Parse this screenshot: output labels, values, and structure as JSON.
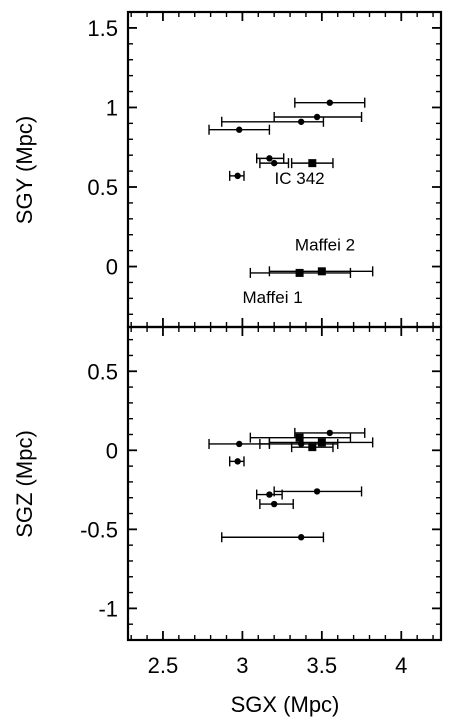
{
  "chart_data": {
    "type": "scatter",
    "xlabel": "SGX (Mpc)",
    "x_ticks": [
      "2.5",
      "3",
      "3.5",
      "4"
    ],
    "x_tick_values": [
      2.5,
      3,
      3.5,
      4
    ],
    "xlim": [
      2.28,
      4.25
    ],
    "panels": [
      {
        "id": "sgy",
        "ylabel": "SGY (Mpc)",
        "ylim": [
          -0.38,
          1.6
        ],
        "y_ticks": [
          "1.5",
          "1",
          "0.5",
          "0"
        ],
        "y_tick_values": [
          1.5,
          1,
          0.5,
          0
        ],
        "points": [
          {
            "x": 3.55,
            "y": 1.03,
            "xmin": 3.33,
            "xmax": 3.77,
            "marker": "circle"
          },
          {
            "x": 3.47,
            "y": 0.94,
            "xmin": 3.2,
            "xmax": 3.75,
            "marker": "circle"
          },
          {
            "x": 3.37,
            "y": 0.91,
            "xmin": 2.87,
            "xmax": 3.51,
            "marker": "circle"
          },
          {
            "x": 2.98,
            "y": 0.86,
            "xmin": 2.79,
            "xmax": 3.17,
            "marker": "circle"
          },
          {
            "x": 3.17,
            "y": 0.68,
            "xmin": 3.09,
            "xmax": 3.26,
            "marker": "circle"
          },
          {
            "x": 3.2,
            "y": 0.65,
            "xmin": 3.11,
            "xmax": 3.29,
            "marker": "circle"
          },
          {
            "x": 3.44,
            "y": 0.65,
            "xmin": 3.31,
            "xmax": 3.57,
            "marker": "square"
          },
          {
            "x": 2.97,
            "y": 0.57,
            "xmin": 2.92,
            "xmax": 3.01,
            "marker": "circle"
          },
          {
            "x": 3.5,
            "y": -0.03,
            "xmin": 3.17,
            "xmax": 3.82,
            "marker": "square"
          },
          {
            "x": 3.36,
            "y": -0.04,
            "xmin": 3.05,
            "xmax": 3.68,
            "marker": "square"
          }
        ],
        "annotations": [
          {
            "text": "IC 342",
            "x": 3.36,
            "y": 0.52
          },
          {
            "text": "Maffei 2",
            "x": 3.52,
            "y": 0.1
          },
          {
            "text": "Maffei 1",
            "x": 3.19,
            "y": -0.23
          }
        ]
      },
      {
        "id": "sgz",
        "ylabel": "SGZ (Mpc)",
        "ylim": [
          -1.2,
          0.78
        ],
        "y_ticks": [
          "0.5",
          "0",
          "-0.5",
          "-1"
        ],
        "y_tick_values": [
          0.5,
          0,
          -0.5,
          -1
        ],
        "points": [
          {
            "x": 3.55,
            "y": 0.11,
            "xmin": 3.33,
            "xmax": 3.77,
            "marker": "circle"
          },
          {
            "x": 3.36,
            "y": 0.08,
            "xmin": 3.05,
            "xmax": 3.68,
            "marker": "square"
          },
          {
            "x": 3.5,
            "y": 0.05,
            "xmin": 3.17,
            "xmax": 3.82,
            "marker": "square"
          },
          {
            "x": 2.98,
            "y": 0.04,
            "xmin": 2.79,
            "xmax": 3.17,
            "marker": "circle"
          },
          {
            "x": 3.37,
            "y": 0.04,
            "xmin": 3.11,
            "xmax": 3.6,
            "marker": "circle"
          },
          {
            "x": 3.44,
            "y": 0.02,
            "xmin": 3.31,
            "xmax": 3.57,
            "marker": "square"
          },
          {
            "x": 2.97,
            "y": -0.07,
            "xmin": 2.92,
            "xmax": 3.01,
            "marker": "circle"
          },
          {
            "x": 3.47,
            "y": -0.26,
            "xmin": 3.2,
            "xmax": 3.75,
            "marker": "circle"
          },
          {
            "x": 3.17,
            "y": -0.28,
            "xmin": 3.09,
            "xmax": 3.25,
            "marker": "circle"
          },
          {
            "x": 3.2,
            "y": -0.34,
            "xmin": 3.11,
            "xmax": 3.32,
            "marker": "circle"
          },
          {
            "x": 3.37,
            "y": -0.55,
            "xmin": 2.87,
            "xmax": 3.51,
            "marker": "circle"
          }
        ],
        "annotations": []
      }
    ]
  }
}
